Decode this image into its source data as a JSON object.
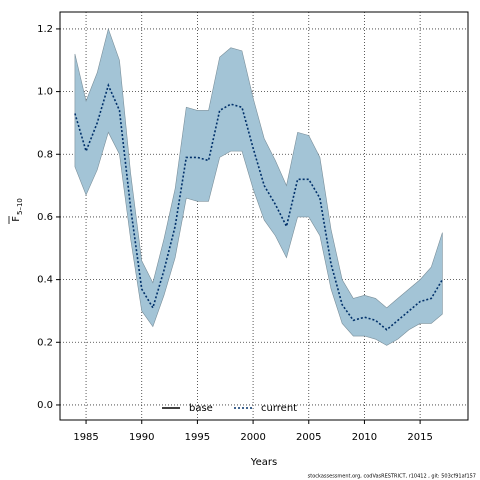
{
  "chart_data": {
    "type": "line",
    "x_label": "Years",
    "y_label": "F",
    "y_label_sub": "5–10",
    "footer": "stockassessment.org, codVasRESTRICT, r10412 , git: 503cf91af157",
    "x": [
      1984,
      1985,
      1986,
      1987,
      1988,
      1989,
      1990,
      1991,
      1992,
      1993,
      1994,
      1995,
      1996,
      1997,
      1998,
      1999,
      2000,
      2001,
      2002,
      2003,
      2004,
      2005,
      2006,
      2007,
      2008,
      2009,
      2010,
      2011,
      2012,
      2013,
      2014,
      2015,
      2016,
      2017
    ],
    "series": [
      {
        "name": "base",
        "color": "#000000",
        "dash": false
      },
      {
        "name": "current",
        "color": "#00306a",
        "dash": true,
        "values": [
          0.93,
          0.81,
          0.9,
          1.02,
          0.94,
          0.63,
          0.37,
          0.31,
          0.43,
          0.57,
          0.79,
          0.79,
          0.78,
          0.94,
          0.96,
          0.95,
          0.82,
          0.7,
          0.64,
          0.57,
          0.72,
          0.72,
          0.66,
          0.45,
          0.32,
          0.27,
          0.28,
          0.27,
          0.24,
          0.27,
          0.3,
          0.33,
          0.34,
          0.4
        ],
        "lower": [
          0.76,
          0.67,
          0.75,
          0.87,
          0.8,
          0.53,
          0.3,
          0.25,
          0.35,
          0.47,
          0.66,
          0.65,
          0.65,
          0.79,
          0.81,
          0.81,
          0.69,
          0.59,
          0.54,
          0.47,
          0.6,
          0.6,
          0.54,
          0.37,
          0.26,
          0.22,
          0.22,
          0.21,
          0.19,
          0.21,
          0.24,
          0.26,
          0.26,
          0.29
        ],
        "upper": [
          1.12,
          0.97,
          1.06,
          1.2,
          1.1,
          0.74,
          0.46,
          0.39,
          0.53,
          0.69,
          0.95,
          0.94,
          0.94,
          1.11,
          1.14,
          1.13,
          0.98,
          0.85,
          0.78,
          0.7,
          0.87,
          0.86,
          0.79,
          0.56,
          0.4,
          0.34,
          0.35,
          0.34,
          0.31,
          0.34,
          0.37,
          0.4,
          0.44,
          0.55
        ],
        "band_color": "#a3c4d6"
      }
    ],
    "xlim": [
      1982.66,
      2019.3
    ],
    "ylim": [
      -0.048,
      1.254
    ],
    "xticks": [
      1985,
      1990,
      1995,
      2000,
      2005,
      2010,
      2015
    ],
    "yticks": [
      {
        "value": 0,
        "label": "0.0"
      },
      {
        "value": 0.2,
        "label": "0.2"
      },
      {
        "value": 0.4,
        "label": "0.4"
      },
      {
        "value": 0.6,
        "label": "0.6"
      },
      {
        "value": 0.8,
        "label": "0.8"
      },
      {
        "value": 1,
        "label": "1.0"
      },
      {
        "value": 1.2,
        "label": "1.2"
      }
    ],
    "grid": true
  }
}
